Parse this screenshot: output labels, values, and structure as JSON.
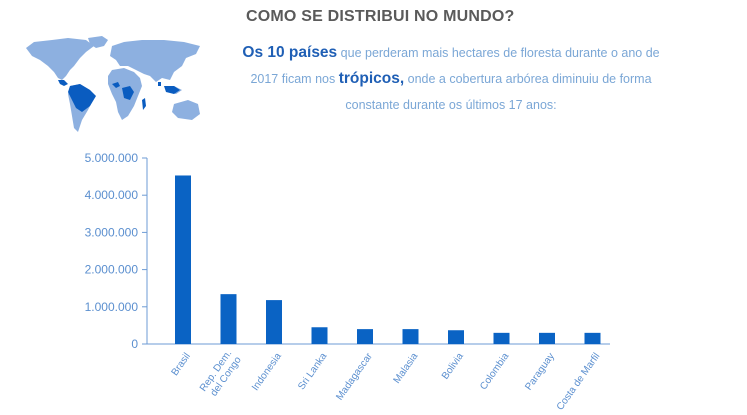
{
  "header": {
    "title": "COMO SE DISTRIBUI NO MUNDO?"
  },
  "intro": {
    "hl1": "Os 10 países",
    "t1": " que perderam mais hectares de floresta durante o ano de 2017 ficam nos ",
    "hl2": "trópicos,",
    "t2": " onde a cobertura arbórea diminuiu de forma constante durante os últimos 17 anos:"
  },
  "colors": {
    "bar": "#0a63c4",
    "axis": "#6d9bd4",
    "text_light": "#7ba7d6",
    "highlight": "#1f5fb5",
    "map_land": "#8db0e0",
    "map_highlight": "#0a5cc0"
  },
  "map": {
    "icon": "world-map-icon"
  },
  "chart_data": {
    "type": "bar",
    "categories": [
      "Brasil",
      "Rep. Dem. del Congo",
      "Indonesia",
      "Sri Lanka",
      "Madagascar",
      "Malasia",
      "Bolivia",
      "Colombia",
      "Paraguay",
      "Costa de Marfil"
    ],
    "category_lines": [
      [
        "Brasil"
      ],
      [
        "Rep. Dem.",
        "del Congo"
      ],
      [
        "Indonesia"
      ],
      [
        "Sri Lanka"
      ],
      [
        "Madagascar"
      ],
      [
        "Malasia"
      ],
      [
        "Bolivia"
      ],
      [
        "Colombia"
      ],
      [
        "Paraguay"
      ],
      [
        "Costa de Marfil"
      ]
    ],
    "values": [
      4530000,
      1340000,
      1180000,
      450000,
      400000,
      400000,
      370000,
      300000,
      300000,
      300000
    ],
    "ylim": [
      0,
      5000000
    ],
    "yticks": [
      0,
      1000000,
      2000000,
      3000000,
      4000000,
      5000000
    ],
    "ytick_labels": [
      "0",
      "1.000.000",
      "2.000.000",
      "3.000.000",
      "4.000.000",
      "5.000.000"
    ],
    "title": "",
    "xlabel": "",
    "ylabel": "",
    "grid": false,
    "legend": "none"
  }
}
